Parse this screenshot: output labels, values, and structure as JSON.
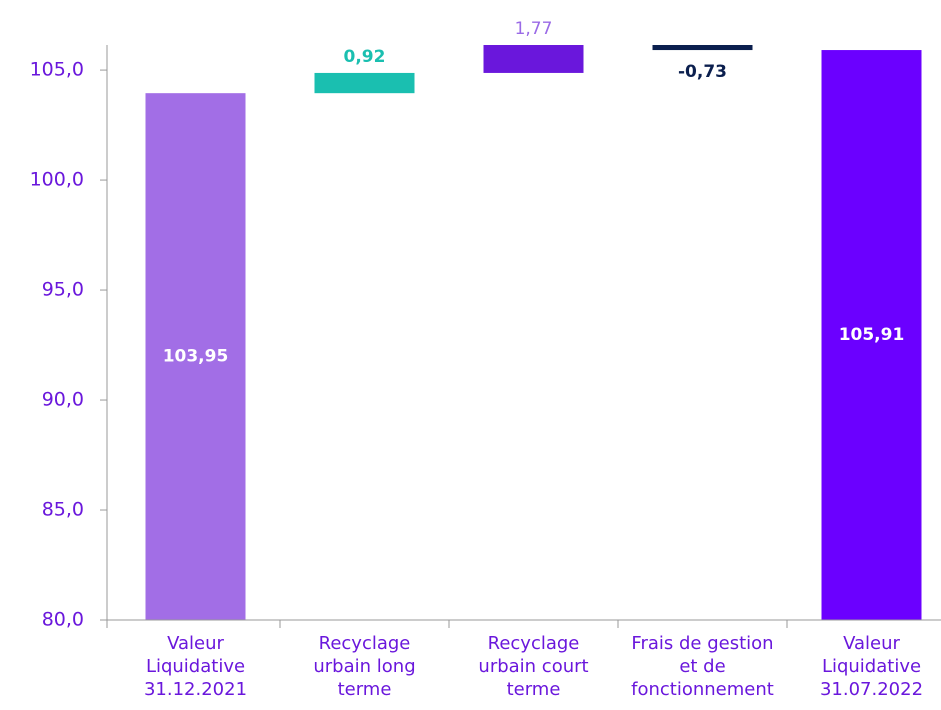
{
  "chart_data": {
    "type": "waterfall",
    "categories": [
      "Valeur\nLiquidative\n31.12.2021",
      "Recyclage\nurbain long\nterme",
      "Recyclage\nurbain court\nterme",
      "Frais de gestion\net de\nfonctionnement",
      "Valeur\nLiquidative\n31.07.2022"
    ],
    "values": [
      103.95,
      0.92,
      1.77,
      -0.73,
      105.91
    ],
    "value_labels": [
      "103,95",
      "0,92",
      "1,77",
      "-0,73",
      "105,91"
    ],
    "measure": [
      "absolute",
      "relative",
      "relative",
      "relative",
      "absolute"
    ],
    "colors": [
      "#a26ee6",
      "#1abfb0",
      "#6a17dc",
      "#0b1f4e",
      "#6b00ff"
    ],
    "label_colors": [
      "#ffffff",
      "#1abfb0",
      "#9a6ae6",
      "#0b1f4e",
      "#ffffff"
    ],
    "ylim": [
      80,
      106.14
    ],
    "yticks": [
      {
        "value": 80,
        "label": "80,0"
      },
      {
        "value": 85,
        "label": "85,0"
      },
      {
        "value": 90,
        "label": "90,0"
      },
      {
        "value": 95,
        "label": "95,0"
      },
      {
        "value": 100,
        "label": "100,0"
      },
      {
        "value": 105,
        "label": "105,0"
      }
    ]
  }
}
